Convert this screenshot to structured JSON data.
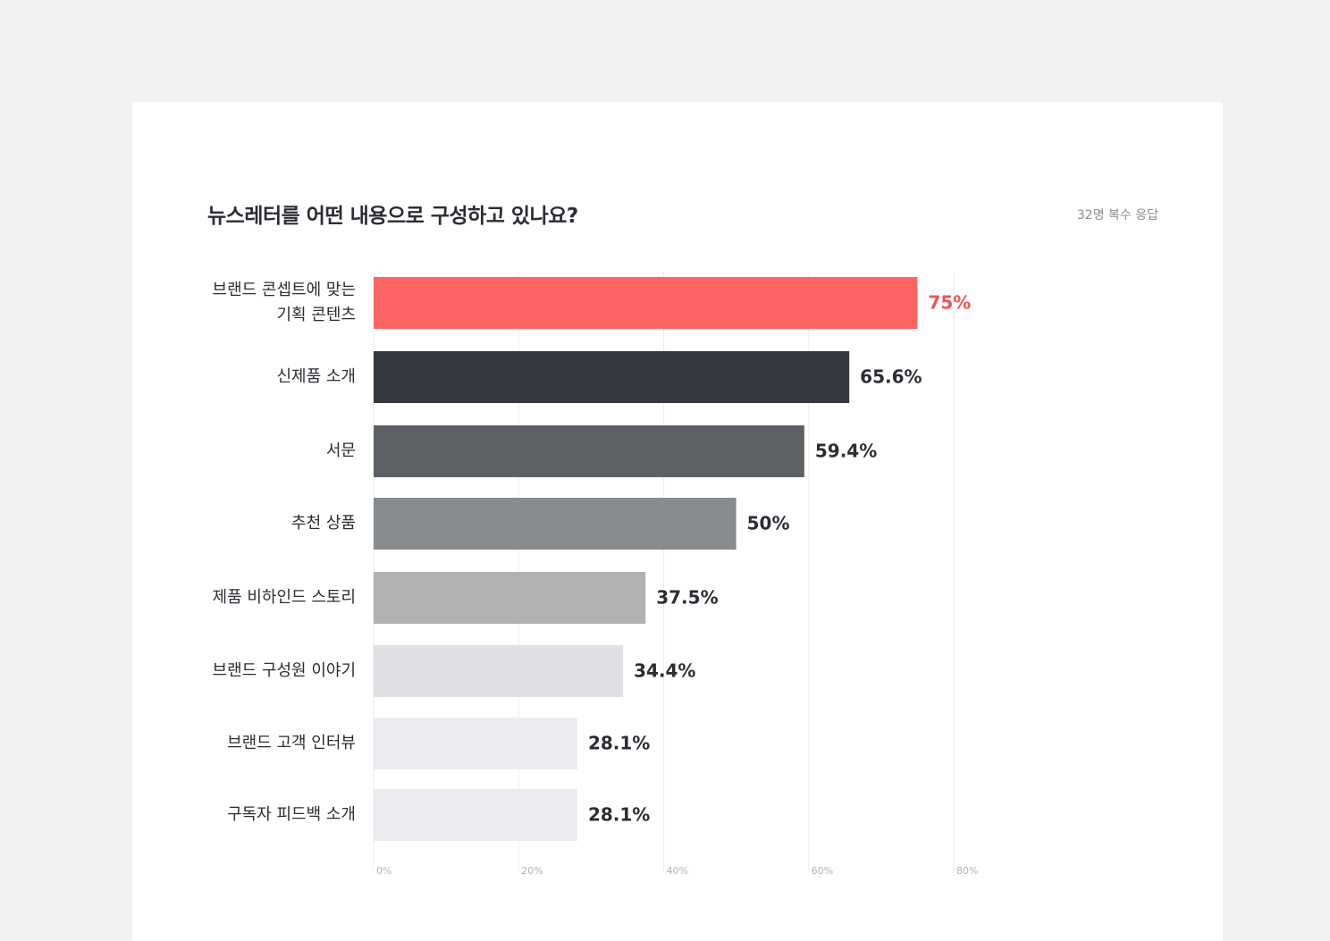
{
  "chart_data": {
    "type": "bar",
    "orientation": "horizontal",
    "title": "뉴스레터를 어떤 내용으로 구성하고 있나요?",
    "note": "32명 복수 응답",
    "categories": [
      [
        "브랜드 콘셉트에 맞는",
        "기획 콘텐츠"
      ],
      [
        "신제품 소개"
      ],
      [
        "서문"
      ],
      [
        "추천 상품"
      ],
      [
        "제품 비하인드 스토리"
      ],
      [
        "브랜드 구성원 이야기"
      ],
      [
        "브랜드 고객 인터뷰"
      ],
      [
        "구독자 피드백 소개"
      ]
    ],
    "values": [
      75,
      65.6,
      59.4,
      50,
      37.5,
      34.4,
      28.1,
      28.1
    ],
    "value_labels": [
      "75%",
      "65.6%",
      "59.4%",
      "50%",
      "37.5%",
      "34.4%",
      "28.1%",
      "28.1%"
    ],
    "bar_colors": [
      "#ff6464",
      "#343840",
      "#5e6166",
      "#888b8e",
      "#b0b1b3",
      "#dfe0e3",
      "#ebecef",
      "#ebecef"
    ],
    "value_label_colors": [
      "#f05252",
      "#2b2d33",
      "#2b2d33",
      "#2b2d33",
      "#2b2d33",
      "#2b2d33",
      "#2b2d33",
      "#2b2d33"
    ],
    "xlim": [
      0,
      80
    ],
    "xticks": [
      0,
      20,
      40,
      60,
      80
    ],
    "xtick_labels": [
      "0%",
      "20%",
      "40%",
      "60%",
      "80%"
    ],
    "grid": true
  }
}
